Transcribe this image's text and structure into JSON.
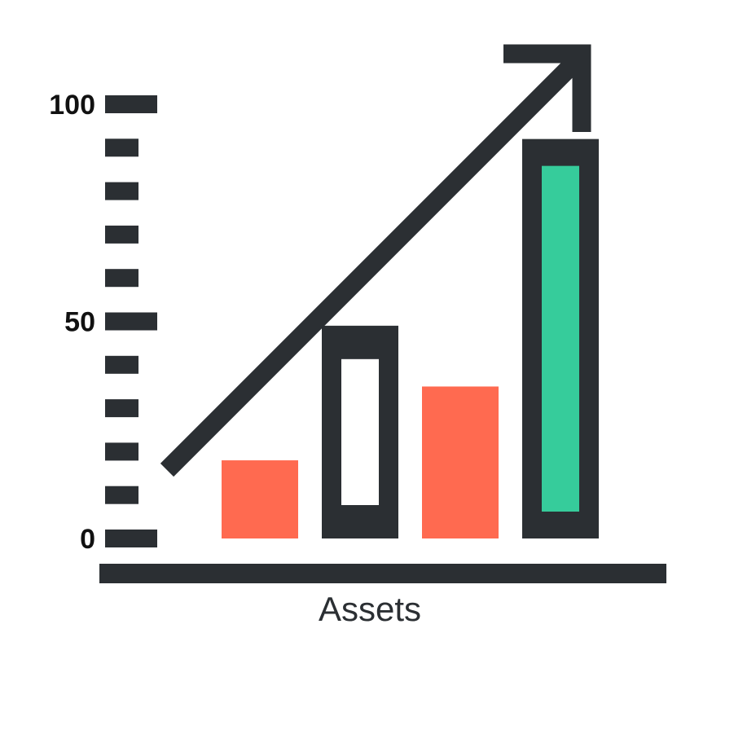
{
  "colors": {
    "ink": "#2b2f33",
    "accent_red": "#ff6a50",
    "accent_green": "#36cc9b",
    "background": "#ffffff"
  },
  "chart_data": {
    "type": "bar",
    "title": "",
    "xlabel": "Assets",
    "ylabel": "",
    "ylim": [
      0,
      100
    ],
    "yticks_labeled": [
      0,
      50,
      100
    ],
    "ytick_step": 10,
    "grid": false,
    "legend": "none",
    "values": [
      18,
      49,
      35,
      92
    ],
    "bar_styles": [
      "solid-red",
      "outlined-dark",
      "solid-red",
      "outlined-green"
    ],
    "trend_arrow": "rising"
  }
}
